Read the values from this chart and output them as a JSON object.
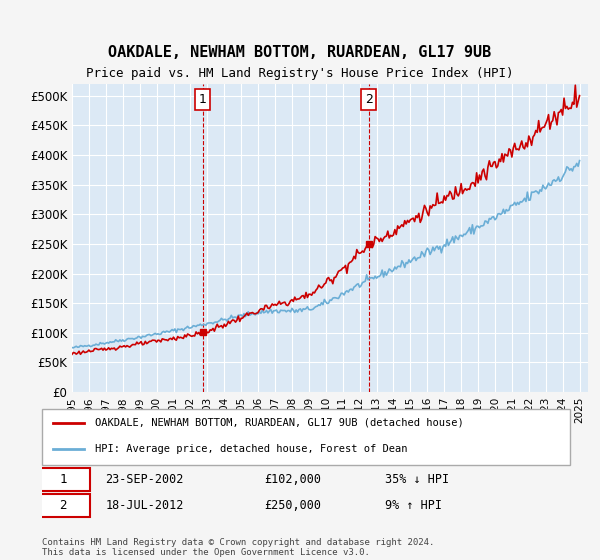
{
  "title": "OAKDALE, NEWHAM BOTTOM, RUARDEAN, GL17 9UB",
  "subtitle": "Price paid vs. HM Land Registry's House Price Index (HPI)",
  "ylabel_ticks": [
    "£0",
    "£50K",
    "£100K",
    "£150K",
    "£200K",
    "£250K",
    "£300K",
    "£350K",
    "£400K",
    "£450K",
    "£500K"
  ],
  "ytick_values": [
    0,
    50000,
    100000,
    150000,
    200000,
    250000,
    300000,
    350000,
    400000,
    450000,
    500000
  ],
  "ylim": [
    0,
    520000
  ],
  "xlim_start": 1995.0,
  "xlim_end": 2025.5,
  "hpi_color": "#6baed6",
  "price_color": "#cc0000",
  "bg_color": "#dce9f5",
  "plot_bg": "#dce9f5",
  "grid_color": "#ffffff",
  "sale1_x": 2002.73,
  "sale1_y": 102000,
  "sale2_x": 2012.54,
  "sale2_y": 250000,
  "annotation1_label": "1",
  "annotation2_label": "2",
  "legend_line1": "OAKDALE, NEWHAM BOTTOM, RUARDEAN, GL17 9UB (detached house)",
  "legend_line2": "HPI: Average price, detached house, Forest of Dean",
  "table_row1": "1    23-SEP-2002         £102,000        35% ↓ HPI",
  "table_row2": "2    18-JUL-2012         £250,000          9% ↑ HPI",
  "footer": "Contains HM Land Registry data © Crown copyright and database right 2024.\nThis data is licensed under the Open Government Licence v3.0.",
  "xtick_years": [
    1995,
    1996,
    1997,
    1998,
    1999,
    2000,
    2001,
    2002,
    2003,
    2004,
    2005,
    2006,
    2007,
    2008,
    2009,
    2010,
    2011,
    2012,
    2013,
    2014,
    2015,
    2016,
    2017,
    2018,
    2019,
    2020,
    2021,
    2022,
    2023,
    2024,
    2025
  ]
}
